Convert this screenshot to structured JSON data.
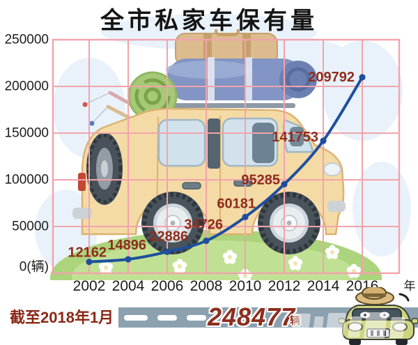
{
  "title": "全市私家车保有量",
  "chart_data": {
    "type": "line",
    "title": "全市私家车保有量",
    "x": [
      2002,
      2004,
      2006,
      2008,
      2010,
      2012,
      2014,
      2016
    ],
    "values": [
      12162,
      14896,
      22886,
      34726,
      60181,
      95285,
      141753,
      209792
    ],
    "point_labels": [
      "12162",
      "14896",
      "22886",
      "34726",
      "60181",
      "95285",
      "141753",
      "209792"
    ],
    "x_tick_labels": [
      "2002",
      "2004",
      "2006",
      "2008",
      "2010",
      "2012",
      "2014",
      "2016"
    ],
    "x_unit_label": "年",
    "y_ticks": [
      250000,
      200000,
      150000,
      100000,
      50000,
      0
    ],
    "y_tick_labels": [
      "250000",
      "200000",
      "150000",
      "100000",
      "50000",
      "0(辆)"
    ],
    "ylim": [
      0,
      250000
    ],
    "grid": true,
    "legend": false
  },
  "footer": {
    "caption": "截至2018年1月",
    "value": "248477",
    "unit": "辆"
  },
  "colors": {
    "line": "#1e4f9e",
    "grid": "#f2a3ac",
    "data_label": "#8e2d1c",
    "axis_text": "#1c1c1c",
    "title_text": "#141414",
    "footer_caption": "#8a2817",
    "footer_value": "#8c2f1f",
    "road_bar": "#8ca1af",
    "road_dash": "#ffffff"
  },
  "icons": {
    "footer_car": "cartoon-car-front-with-hat-icon",
    "background": "family-van-with-roof-luggage-illustration"
  }
}
